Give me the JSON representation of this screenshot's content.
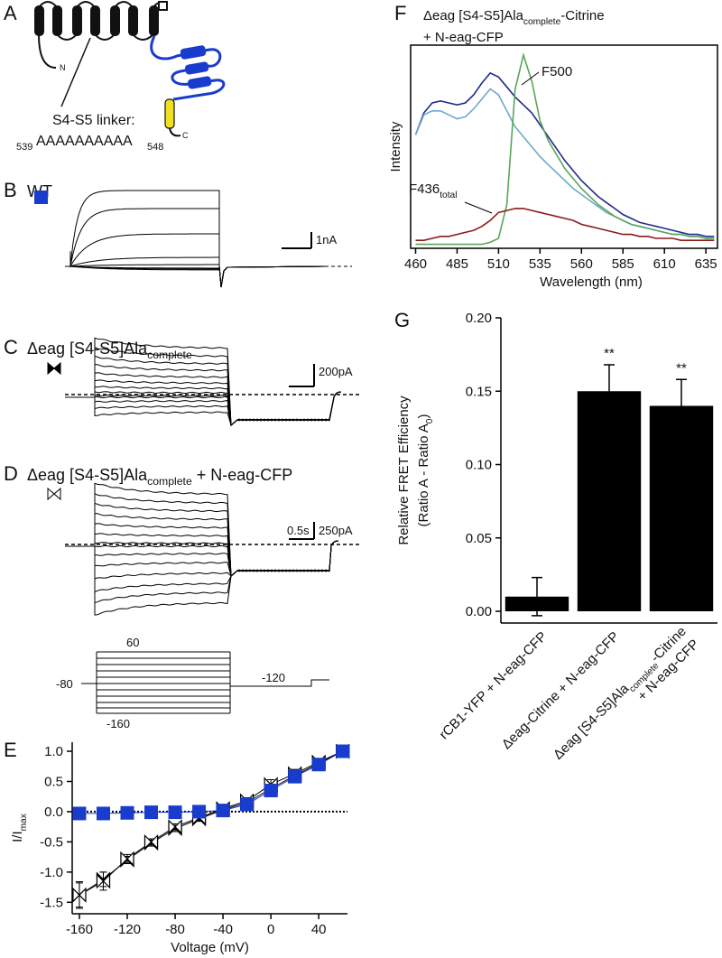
{
  "panel_labels": [
    "A",
    "B",
    "C",
    "D",
    "E",
    "F",
    "G"
  ],
  "panel_a": {
    "n_label": "N",
    "c_label": "C",
    "linker_label": "S4-S5 linker:",
    "seq_start": "539",
    "seq": "AAAAAAAAAA",
    "seq_end": "548"
  },
  "panel_b": {
    "title": "WT",
    "scale": "1nA"
  },
  "panel_c": {
    "title": {
      "main": "Δeag [S4-S5]Ala",
      "sub": "complete"
    },
    "scale": "200pA"
  },
  "panel_d": {
    "title": {
      "main": "Δeag [S4-S5]Ala",
      "sub": "complete",
      "tail": " + N-eag-CFP"
    },
    "scale_time": "0.5s",
    "scale": "250pA"
  },
  "protocol": {
    "top": "60",
    "hold": "-80",
    "bottom": "-160",
    "tail": "-120"
  },
  "chart_data": [
    {
      "type": "line",
      "x": [
        -160,
        -140,
        -120,
        -100,
        -80,
        -60,
        -40,
        -20,
        0,
        20,
        40,
        60
      ],
      "series": [
        {
          "color": "#1a3ccc",
          "marker": "square",
          "marker_fill": "#1a3ccc",
          "values": [
            -0.03,
            -0.03,
            -0.02,
            -0.01,
            -0.01,
            0.0,
            0.02,
            0.12,
            0.35,
            0.58,
            0.78,
            1.0
          ],
          "errors": [
            0.03,
            0.02,
            0.02,
            0.02,
            0.02,
            0.02,
            0.02,
            0.03,
            0.04,
            0.04,
            0.03,
            0
          ]
        },
        {
          "color": "#000000",
          "marker": "bowtie",
          "marker_fill": "#000000",
          "values": [
            -1.38,
            -1.12,
            -0.8,
            -0.52,
            -0.28,
            -0.12,
            0.03,
            0.15,
            0.38,
            0.6,
            0.8,
            1.0
          ],
          "errors": [
            0.2,
            0.12,
            0.06,
            0.05,
            0.05,
            0.04,
            0.04,
            0.04,
            0.05,
            0.05,
            0.04,
            0
          ]
        },
        {
          "color": "#000000",
          "marker": "bowtie",
          "marker_fill": "#ffffff",
          "values": [
            -1.38,
            -1.15,
            -0.78,
            -0.5,
            -0.25,
            -0.1,
            0.05,
            0.18,
            0.45,
            0.63,
            0.82,
            1.0
          ],
          "errors": [
            0.22,
            0.15,
            0.07,
            0.05,
            0.05,
            0.05,
            0.04,
            0.05,
            0.08,
            0.07,
            0.05,
            0
          ]
        }
      ],
      "xlim": [
        -166,
        64
      ],
      "ylim": [
        -1.69,
        1.15
      ],
      "xticks": [
        -160,
        -120,
        -80,
        -40,
        0,
        40
      ],
      "yticks": [
        {
          "value": 1,
          "label": "1.0"
        },
        0.5,
        {
          "value": 0,
          "label": "0.0"
        },
        -0.5,
        {
          "value": -1,
          "label": "-1.0"
        },
        -1.5
      ],
      "xlabel": "Voltage (mV)",
      "ylabel": {
        "main": "I/I",
        "sub": "max"
      },
      "zero_line": true,
      "frame": false
    },
    {
      "type": "line",
      "title": {
        "main": "Δeag [S4-S5]Ala",
        "sub": "complete",
        "tail": "-Citrine"
      },
      "title_line2": "+ N-eag-CFP",
      "x": [
        460,
        465,
        470,
        475,
        480,
        485,
        490,
        495,
        500,
        505,
        510,
        515,
        520,
        525,
        530,
        535,
        540,
        545,
        550,
        555,
        560,
        565,
        570,
        575,
        580,
        585,
        590,
        595,
        600,
        605,
        610,
        615,
        620,
        625,
        630,
        635,
        640
      ],
      "series": [
        {
          "color": "#1f2a8c",
          "values": [
            0.55,
            0.66,
            0.71,
            0.72,
            0.71,
            0.7,
            0.71,
            0.75,
            0.81,
            0.86,
            0.84,
            0.79,
            0.74,
            0.7,
            0.66,
            0.6,
            0.54,
            0.48,
            0.42,
            0.37,
            0.32,
            0.28,
            0.24,
            0.21,
            0.18,
            0.15,
            0.13,
            0.11,
            0.1,
            0.09,
            0.08,
            0.07,
            0.06,
            0.05,
            0.05,
            0.04,
            0.04
          ]
        },
        {
          "color": "#6fa9c9",
          "values": [
            0.55,
            0.65,
            0.67,
            0.67,
            0.65,
            0.63,
            0.64,
            0.68,
            0.73,
            0.78,
            0.75,
            0.67,
            0.59,
            0.54,
            0.49,
            0.44,
            0.4,
            0.36,
            0.32,
            0.28,
            0.25,
            0.22,
            0.19,
            0.16,
            0.14,
            0.12,
            0.1,
            0.09,
            0.08,
            0.07,
            0.06,
            0.05,
            0.05,
            0.04,
            0.04,
            0.03,
            0.03
          ]
        },
        {
          "color": "#5aa65a",
          "values": [
            0,
            0,
            0,
            0,
            0,
            0,
            0,
            0,
            0,
            0.01,
            0.03,
            0.2,
            0.78,
            0.95,
            0.82,
            0.62,
            0.52,
            0.45,
            0.38,
            0.33,
            0.28,
            0.24,
            0.2,
            0.17,
            0.14,
            0.12,
            0.1,
            0.09,
            0.08,
            0.07,
            0.06,
            0.05,
            0.05,
            0.04,
            0.04,
            0.03,
            0.03
          ]
        },
        {
          "color": "#8b1a1a",
          "values": [
            0.02,
            0.02,
            0.03,
            0.04,
            0.04,
            0.05,
            0.06,
            0.07,
            0.09,
            0.12,
            0.16,
            0.17,
            0.18,
            0.18,
            0.17,
            0.16,
            0.15,
            0.14,
            0.13,
            0.12,
            0.1,
            0.09,
            0.08,
            0.07,
            0.06,
            0.05,
            0.05,
            0.04,
            0.04,
            0.03,
            0.03,
            0.03,
            0.02,
            0.02,
            0.02,
            0.02,
            0.02
          ]
        }
      ],
      "annotations": [
        {
          "main": "F500"
        },
        {
          "main": "F436",
          "sub": "total"
        }
      ],
      "xlim": [
        457,
        642
      ],
      "ylim": [
        -0.02,
        1.0
      ],
      "xticks": [
        460,
        485,
        510,
        535,
        560,
        585,
        610,
        635
      ],
      "xlabel": "Wavelength (nm)",
      "ylabel": {
        "main": "Intensity"
      },
      "frame": true
    },
    {
      "type": "bar",
      "categories": [
        "rCB1-YFP + N-eag-CFP",
        "Δeag-Citrine + N-eag-CFP",
        {
          "main": "Δeag [S4-S5]Ala",
          "sub": "complete",
          "tail": "-Citrine",
          "line2": "+ N-eag-CFP"
        }
      ],
      "values": [
        0.01,
        0.15,
        0.14
      ],
      "errors": [
        0.013,
        0.018,
        0.018
      ],
      "significance": [
        null,
        "**",
        "**"
      ],
      "color": "#000000",
      "ylim": [
        -0.008,
        0.2
      ],
      "yticks": [
        {
          "value": 0,
          "label": "0.00"
        },
        0.05,
        {
          "value": 0.1,
          "label": "0.10"
        },
        0.15,
        {
          "value": 0.2,
          "label": "0.20"
        }
      ],
      "ylabel": {
        "main": "Relative FRET Efficiency"
      },
      "ylabel2": {
        "main": "(Ratio A - Ratio A",
        "sub": "0",
        "tail": ")"
      }
    }
  ]
}
